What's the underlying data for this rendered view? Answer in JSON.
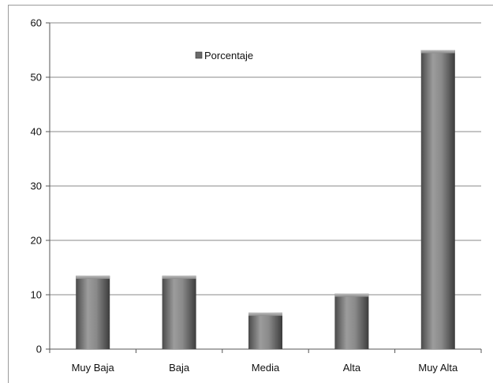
{
  "chart_data": {
    "type": "bar",
    "categories": [
      "Muy Baja",
      "Baja",
      "Media",
      "Alta",
      "Muy Alta"
    ],
    "series": [
      {
        "name": "Porcentaje",
        "values": [
          13.5,
          13.5,
          6.7,
          10.2,
          55.0
        ]
      }
    ],
    "title": "",
    "xlabel": "",
    "ylabel": "",
    "ylim": [
      0,
      60
    ],
    "yticks": [
      "0",
      "10",
      "20",
      "30",
      "40",
      "50",
      "60"
    ],
    "grid": true,
    "legend_placement": "top-center",
    "bar_color": "#7a7a7a"
  }
}
